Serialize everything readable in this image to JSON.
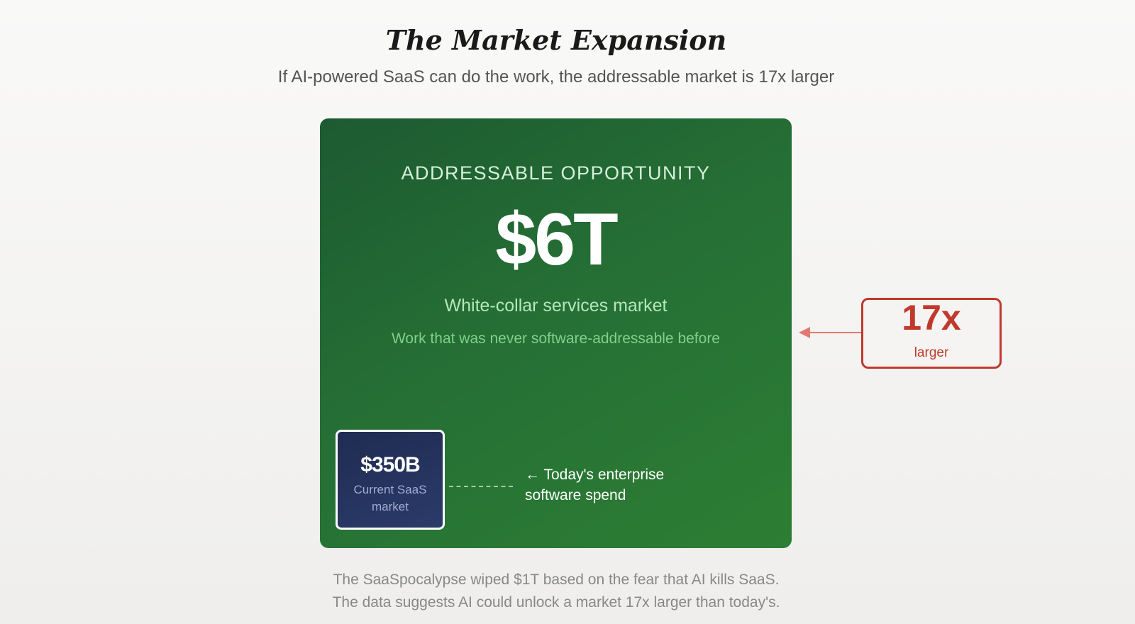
{
  "header": {
    "title": "The Market Expansion",
    "subtitle": "If AI-powered SaaS can do the work, the addressable market is 17x larger"
  },
  "card": {
    "eyebrow": "ADDRESSABLE OPPORTUNITY",
    "value": "$6T",
    "label": "White-collar services market",
    "sublabel": "Work that was never software-addressable before",
    "background_color": "#256f35"
  },
  "current": {
    "value": "$350B",
    "label_line1": "Current SaaS",
    "label_line2": "market",
    "note_line1": "← Today's enterprise",
    "note_line2": "software spend",
    "background_color": "#2b3b6a"
  },
  "multiplier": {
    "value": "17x",
    "label": "larger",
    "color": "#c0392b"
  },
  "footer": {
    "line1": "The SaaSpocalypse wiped $1T based on the fear that AI kills SaaS.",
    "line2": "The data suggests AI could unlock a market 17x larger than today's."
  }
}
